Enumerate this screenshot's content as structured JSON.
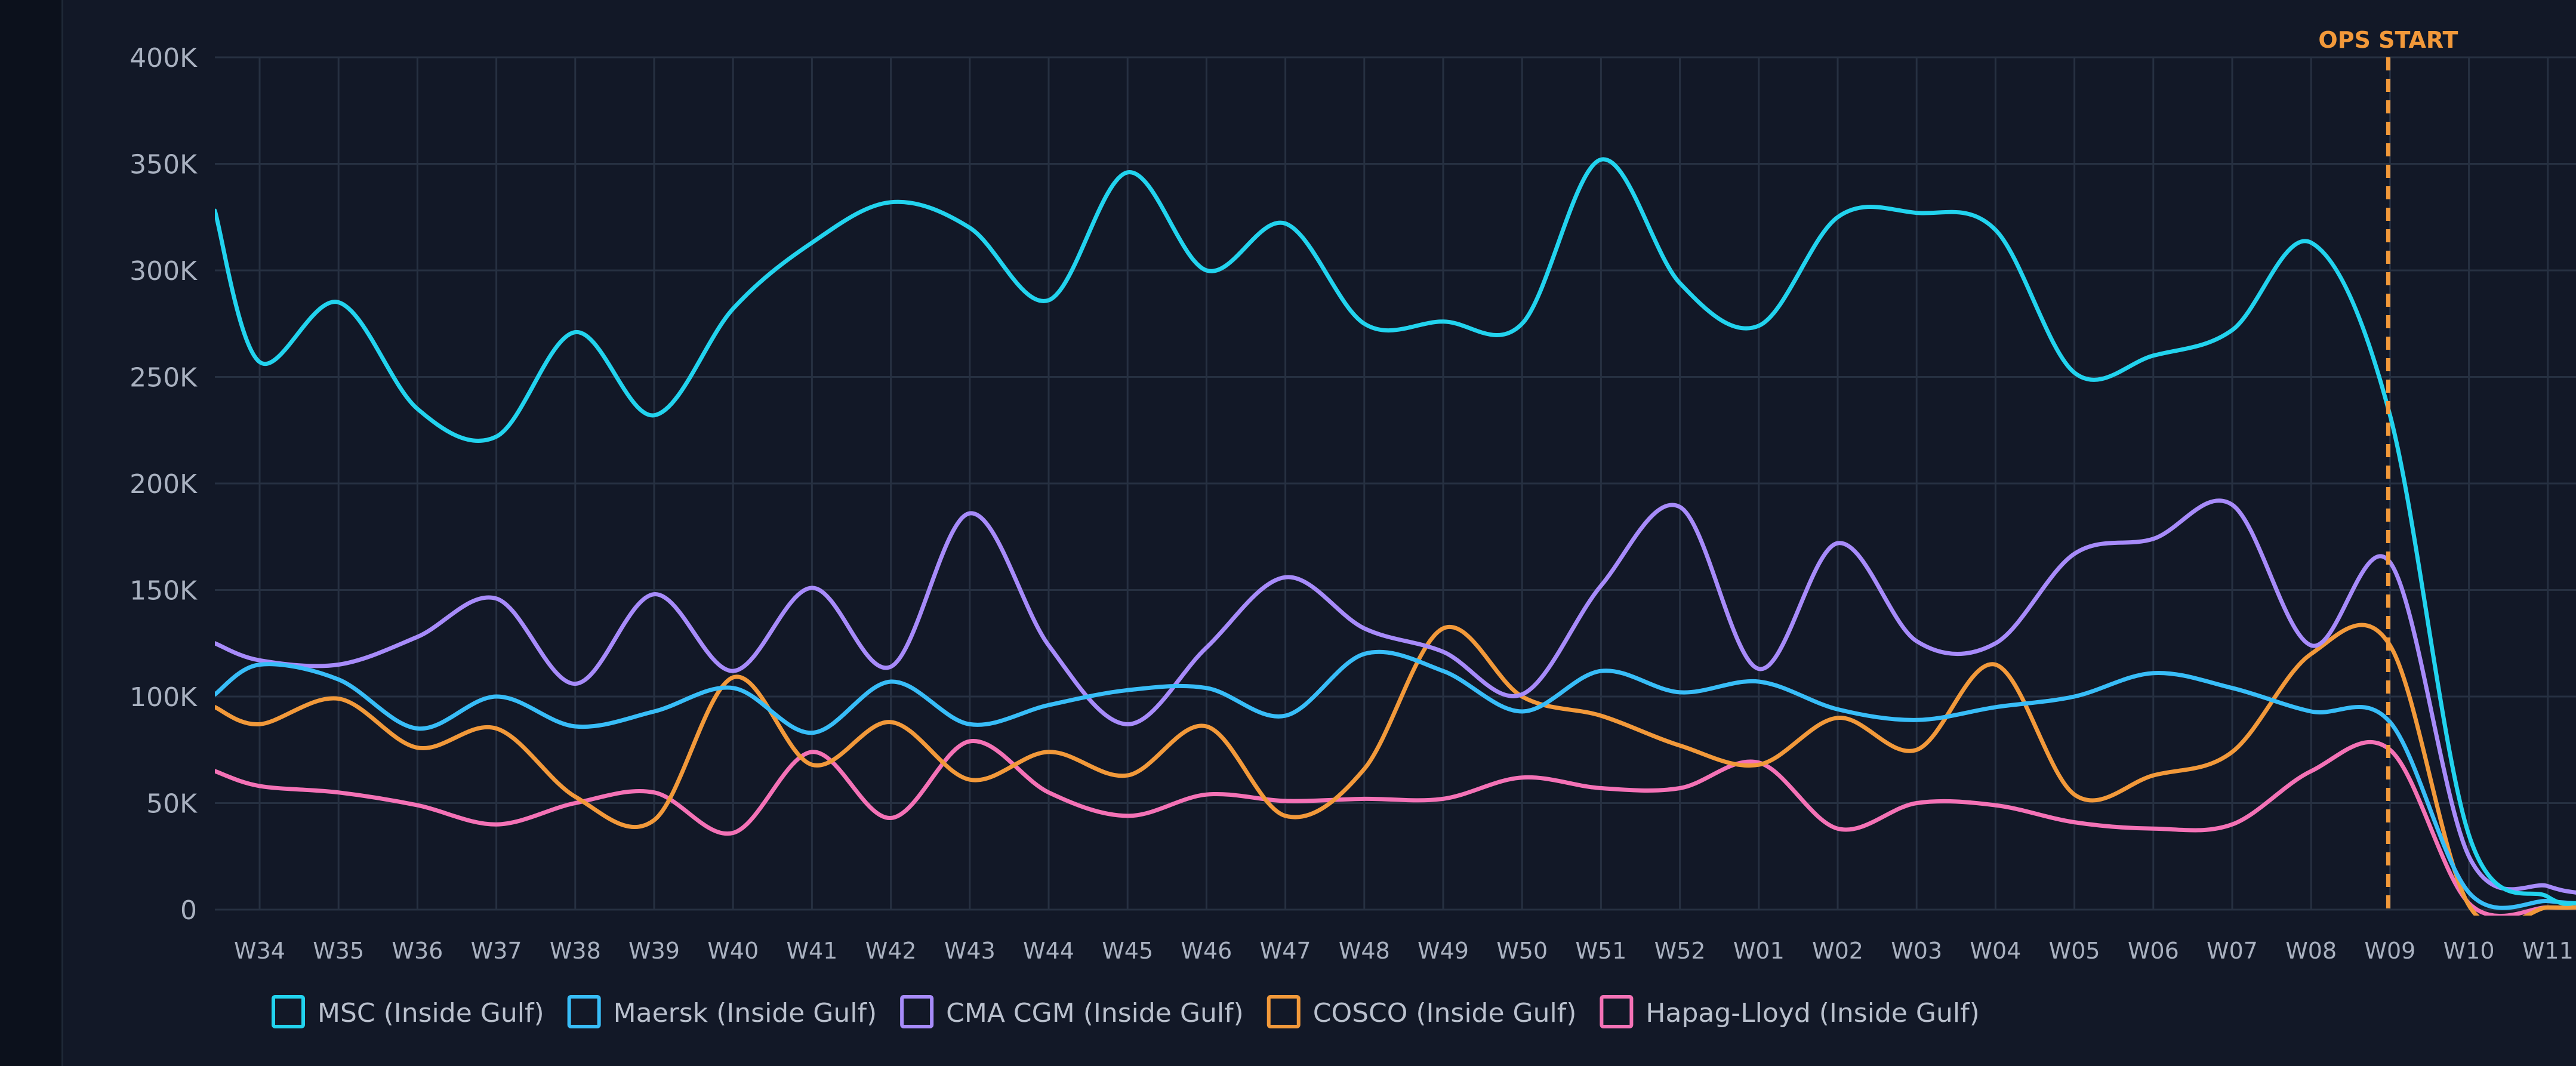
{
  "chart_data": {
    "type": "line",
    "title": "",
    "xlabel": "",
    "ylabel": "",
    "categories": [
      "W34",
      "W35",
      "W36",
      "W37",
      "W38",
      "W39",
      "W40",
      "W41",
      "W42",
      "W43",
      "W44",
      "W45",
      "W46",
      "W47",
      "W48",
      "W49",
      "W50",
      "W51",
      "W52",
      "W01",
      "W02",
      "W03",
      "W04",
      "W05",
      "W06",
      "W07",
      "W08",
      "W09",
      "W10",
      "W11"
    ],
    "y_ticks": [
      "0",
      "50K",
      "100K",
      "150K",
      "200K",
      "250K",
      "300K",
      "350K",
      "400K"
    ],
    "ylim": [
      0,
      400000
    ],
    "grid": true,
    "legend_position": "bottom",
    "annotation": {
      "label": "OPS START",
      "at_category": "W09",
      "color": "#f2993a"
    },
    "series": [
      {
        "name": "MSC (Inside Gulf)",
        "color": "#22d3ee",
        "start": 328000,
        "values": [
          257000,
          285000,
          235000,
          222000,
          271000,
          232000,
          282000,
          313000,
          332000,
          320000,
          286000,
          346000,
          300000,
          322000,
          275000,
          276000,
          275000,
          352000,
          294000,
          274000,
          325000,
          327000,
          319000,
          252000,
          260000,
          272000,
          313000,
          232000,
          35000,
          6000
        ],
        "end": 3000
      },
      {
        "name": "Maersk (Inside Gulf)",
        "color": "#38bdf8",
        "start": 101000,
        "values": [
          115000,
          108000,
          85000,
          100000,
          86000,
          93000,
          104000,
          83000,
          107000,
          87000,
          96000,
          103000,
          104000,
          91000,
          120000,
          112000,
          93000,
          112000,
          102000,
          107000,
          94000,
          89000,
          95000,
          100000,
          111000,
          104000,
          93000,
          88000,
          8000,
          4000
        ],
        "end": 3000
      },
      {
        "name": "CMA CGM (Inside Gulf)",
        "color": "#a78bfa",
        "start": 125000,
        "values": [
          117000,
          115000,
          128000,
          146000,
          106000,
          148000,
          112000,
          151000,
          114000,
          186000,
          124000,
          87000,
          123000,
          156000,
          132000,
          121000,
          101000,
          152000,
          189000,
          113000,
          172000,
          126000,
          125000,
          167000,
          174000,
          190000,
          124000,
          163000,
          25000,
          11000
        ],
        "end": 8000
      },
      {
        "name": "COSCO (Inside Gulf)",
        "color": "#f2993a",
        "start": 95000,
        "values": [
          87000,
          99000,
          76000,
          85000,
          53000,
          42000,
          109000,
          68000,
          88000,
          61000,
          74000,
          63000,
          86000,
          44000,
          66000,
          132000,
          100000,
          91000,
          77000,
          68000,
          90000,
          75000,
          115000,
          54000,
          63000,
          74000,
          120000,
          124000,
          2000,
          1000
        ],
        "end": 1000
      },
      {
        "name": "Hapag-Lloyd (Inside Gulf)",
        "color": "#f472b6",
        "start": 65000,
        "values": [
          58000,
          55000,
          49000,
          40000,
          50000,
          55000,
          36000,
          74000,
          43000,
          79000,
          55000,
          44000,
          54000,
          51000,
          52000,
          52000,
          62000,
          57000,
          57000,
          69000,
          38000,
          50000,
          49000,
          41000,
          38000,
          40000,
          65000,
          75000,
          3000,
          1000
        ],
        "end": 1000
      }
    ]
  }
}
